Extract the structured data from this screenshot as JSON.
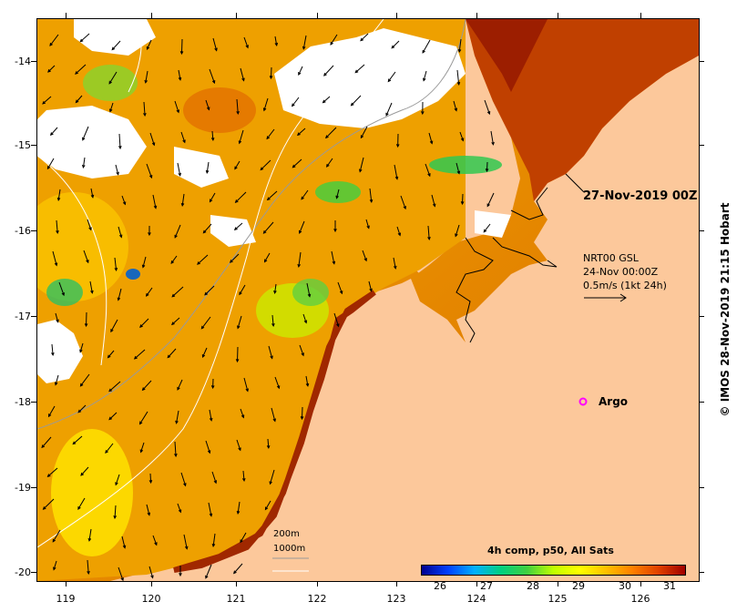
{
  "map": {
    "datetime_label": "27-Nov-2019 00Z",
    "current_source": {
      "line1": "NRT00 GSL",
      "line2": "24-Nov 00:00Z",
      "line3": "0.5m/s (1kt 24h)"
    },
    "argo_label": "Argo",
    "bathymetry_legend": [
      "200m",
      "1000m"
    ],
    "colorbar": {
      "title": "4h comp, p50, All Sats",
      "ticks": [
        "26",
        "27",
        "28",
        "29",
        "30",
        "31"
      ]
    },
    "y_axis_labels": [
      "-14",
      "-15",
      "-16",
      "-17",
      "-18",
      "-19",
      "-20"
    ],
    "x_axis_labels": [
      "119",
      "120",
      "121",
      "122",
      "123",
      "124",
      "125",
      "126"
    ],
    "credit": "© IMOS 28-Nov-2019 21:15 Hobart",
    "colors": {
      "land": "#fcc89b",
      "cloud": "#ffffff",
      "argo_marker": "#ff00ff"
    }
  }
}
